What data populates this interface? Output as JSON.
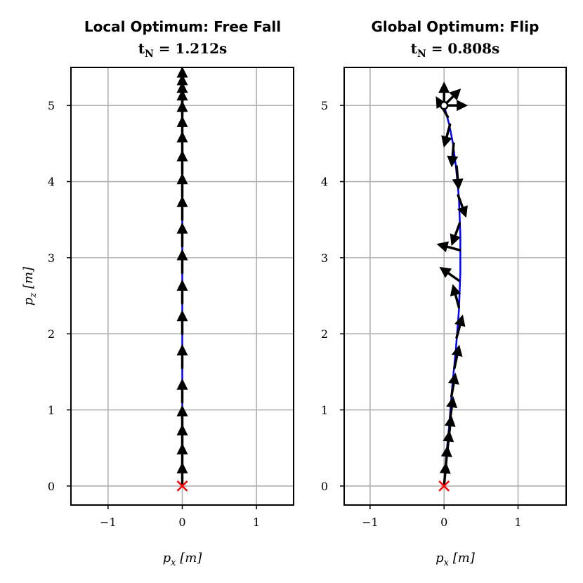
{
  "chart_data": [
    {
      "type": "line",
      "title": "Local Optimum: Free Fall",
      "subtitle": "t_N = 1.212s",
      "xlabel": "p_x [m]",
      "ylabel": "p_z [m]",
      "xlim": [
        -1.5,
        1.5
      ],
      "ylim": [
        -0.25,
        5.5
      ],
      "xticks": [
        -1,
        0,
        1
      ],
      "xtick_labels": [
        "−1",
        "0",
        "1"
      ],
      "yticks": [
        0,
        1,
        2,
        3,
        4,
        5
      ],
      "ytick_labels": [
        "0",
        "1",
        "2",
        "3",
        "4",
        "5"
      ],
      "grid": true,
      "colors": {
        "trajectory": "#0000ff",
        "arrow": "#000000",
        "start_marker": "#ff0000"
      },
      "trajectory": {
        "x": [
          0,
          0,
          0,
          0,
          0,
          0,
          0,
          0,
          0,
          0,
          0
        ],
        "y": [
          0,
          0.5,
          1.0,
          1.5,
          2.0,
          2.5,
          3.0,
          3.5,
          4.0,
          4.5,
          5.0
        ]
      },
      "arrows": [
        {
          "x": 0,
          "y": 0.0,
          "angle_deg": 90
        },
        {
          "x": 0,
          "y": 0.25,
          "angle_deg": 90
        },
        {
          "x": 0,
          "y": 0.5,
          "angle_deg": 90
        },
        {
          "x": 0,
          "y": 0.75,
          "angle_deg": 90
        },
        {
          "x": 0,
          "y": 1.1,
          "angle_deg": 90
        },
        {
          "x": 0,
          "y": 1.55,
          "angle_deg": 90
        },
        {
          "x": 0,
          "y": 2.0,
          "angle_deg": 90
        },
        {
          "x": 0,
          "y": 2.4,
          "angle_deg": 90
        },
        {
          "x": 0,
          "y": 2.8,
          "angle_deg": 90
        },
        {
          "x": 0,
          "y": 3.15,
          "angle_deg": 90
        },
        {
          "x": 0,
          "y": 3.5,
          "angle_deg": 90
        },
        {
          "x": 0,
          "y": 3.8,
          "angle_deg": 90
        },
        {
          "x": 0,
          "y": 4.1,
          "angle_deg": 90
        },
        {
          "x": 0,
          "y": 4.35,
          "angle_deg": 90
        },
        {
          "x": 0,
          "y": 4.55,
          "angle_deg": 90
        },
        {
          "x": 0,
          "y": 4.75,
          "angle_deg": 90
        },
        {
          "x": 0,
          "y": 4.9,
          "angle_deg": 90
        },
        {
          "x": 0,
          "y": 5.0,
          "angle_deg": 90
        },
        {
          "x": 0,
          "y": 5.1,
          "angle_deg": 90
        },
        {
          "x": 0,
          "y": 5.2,
          "angle_deg": 90
        }
      ],
      "start_marker": {
        "x": 0,
        "y": 0
      },
      "end_marker": null
    },
    {
      "type": "line",
      "title": "Global Optimum: Flip",
      "subtitle": "t_N = 0.808s",
      "xlabel": "p_x [m]",
      "ylabel": "",
      "xlim": [
        -1.35,
        1.65
      ],
      "ylim": [
        -0.25,
        5.5
      ],
      "xticks": [
        -1,
        0,
        1
      ],
      "xtick_labels": [
        "−1",
        "0",
        "1"
      ],
      "yticks": [
        0,
        1,
        2,
        3,
        4,
        5
      ],
      "ytick_labels": [
        "0",
        "1",
        "2",
        "3",
        "4",
        "5"
      ],
      "grid": true,
      "colors": {
        "trajectory": "#0000ff",
        "arrow": "#000000",
        "start_marker": "#ff0000"
      },
      "trajectory": {
        "x": [
          0,
          0.03,
          0.07,
          0.11,
          0.16,
          0.2,
          0.22,
          0.22,
          0.2,
          0.16,
          0.12,
          0.07,
          0.0
        ],
        "y": [
          0,
          0.4,
          0.8,
          1.3,
          1.8,
          2.3,
          2.8,
          3.3,
          3.8,
          4.2,
          4.5,
          4.75,
          5.0
        ]
      },
      "arrows": [
        {
          "x": 0.0,
          "y": 0.0,
          "angle_deg": 85
        },
        {
          "x": 0.02,
          "y": 0.22,
          "angle_deg": 85
        },
        {
          "x": 0.04,
          "y": 0.42,
          "angle_deg": 84
        },
        {
          "x": 0.06,
          "y": 0.62,
          "angle_deg": 83
        },
        {
          "x": 0.08,
          "y": 0.87,
          "angle_deg": 82
        },
        {
          "x": 0.1,
          "y": 1.18,
          "angle_deg": 80
        },
        {
          "x": 0.14,
          "y": 1.55,
          "angle_deg": 78
        },
        {
          "x": 0.17,
          "y": 1.95,
          "angle_deg": 75
        },
        {
          "x": 0.2,
          "y": 2.35,
          "angle_deg": 105
        },
        {
          "x": 0.2,
          "y": 2.7,
          "angle_deg": 145
        },
        {
          "x": 0.21,
          "y": 3.1,
          "angle_deg": 165
        },
        {
          "x": 0.21,
          "y": 3.45,
          "angle_deg": 250
        },
        {
          "x": 0.19,
          "y": 3.82,
          "angle_deg": 290
        },
        {
          "x": 0.17,
          "y": 4.2,
          "angle_deg": 275
        },
        {
          "x": 0.13,
          "y": 4.5,
          "angle_deg": 265
        },
        {
          "x": 0.08,
          "y": 4.75,
          "angle_deg": 255
        },
        {
          "x": 0.0,
          "y": 5.0,
          "angle_deg": 0
        },
        {
          "x": 0.0,
          "y": 5.0,
          "angle_deg": 45
        },
        {
          "x": 0.0,
          "y": 5.0,
          "angle_deg": 90
        },
        {
          "x": 0.05,
          "y": 4.85,
          "angle_deg": 120
        }
      ],
      "start_marker": {
        "x": 0,
        "y": 0
      },
      "end_marker": {
        "x": 0,
        "y": 5
      }
    }
  ]
}
